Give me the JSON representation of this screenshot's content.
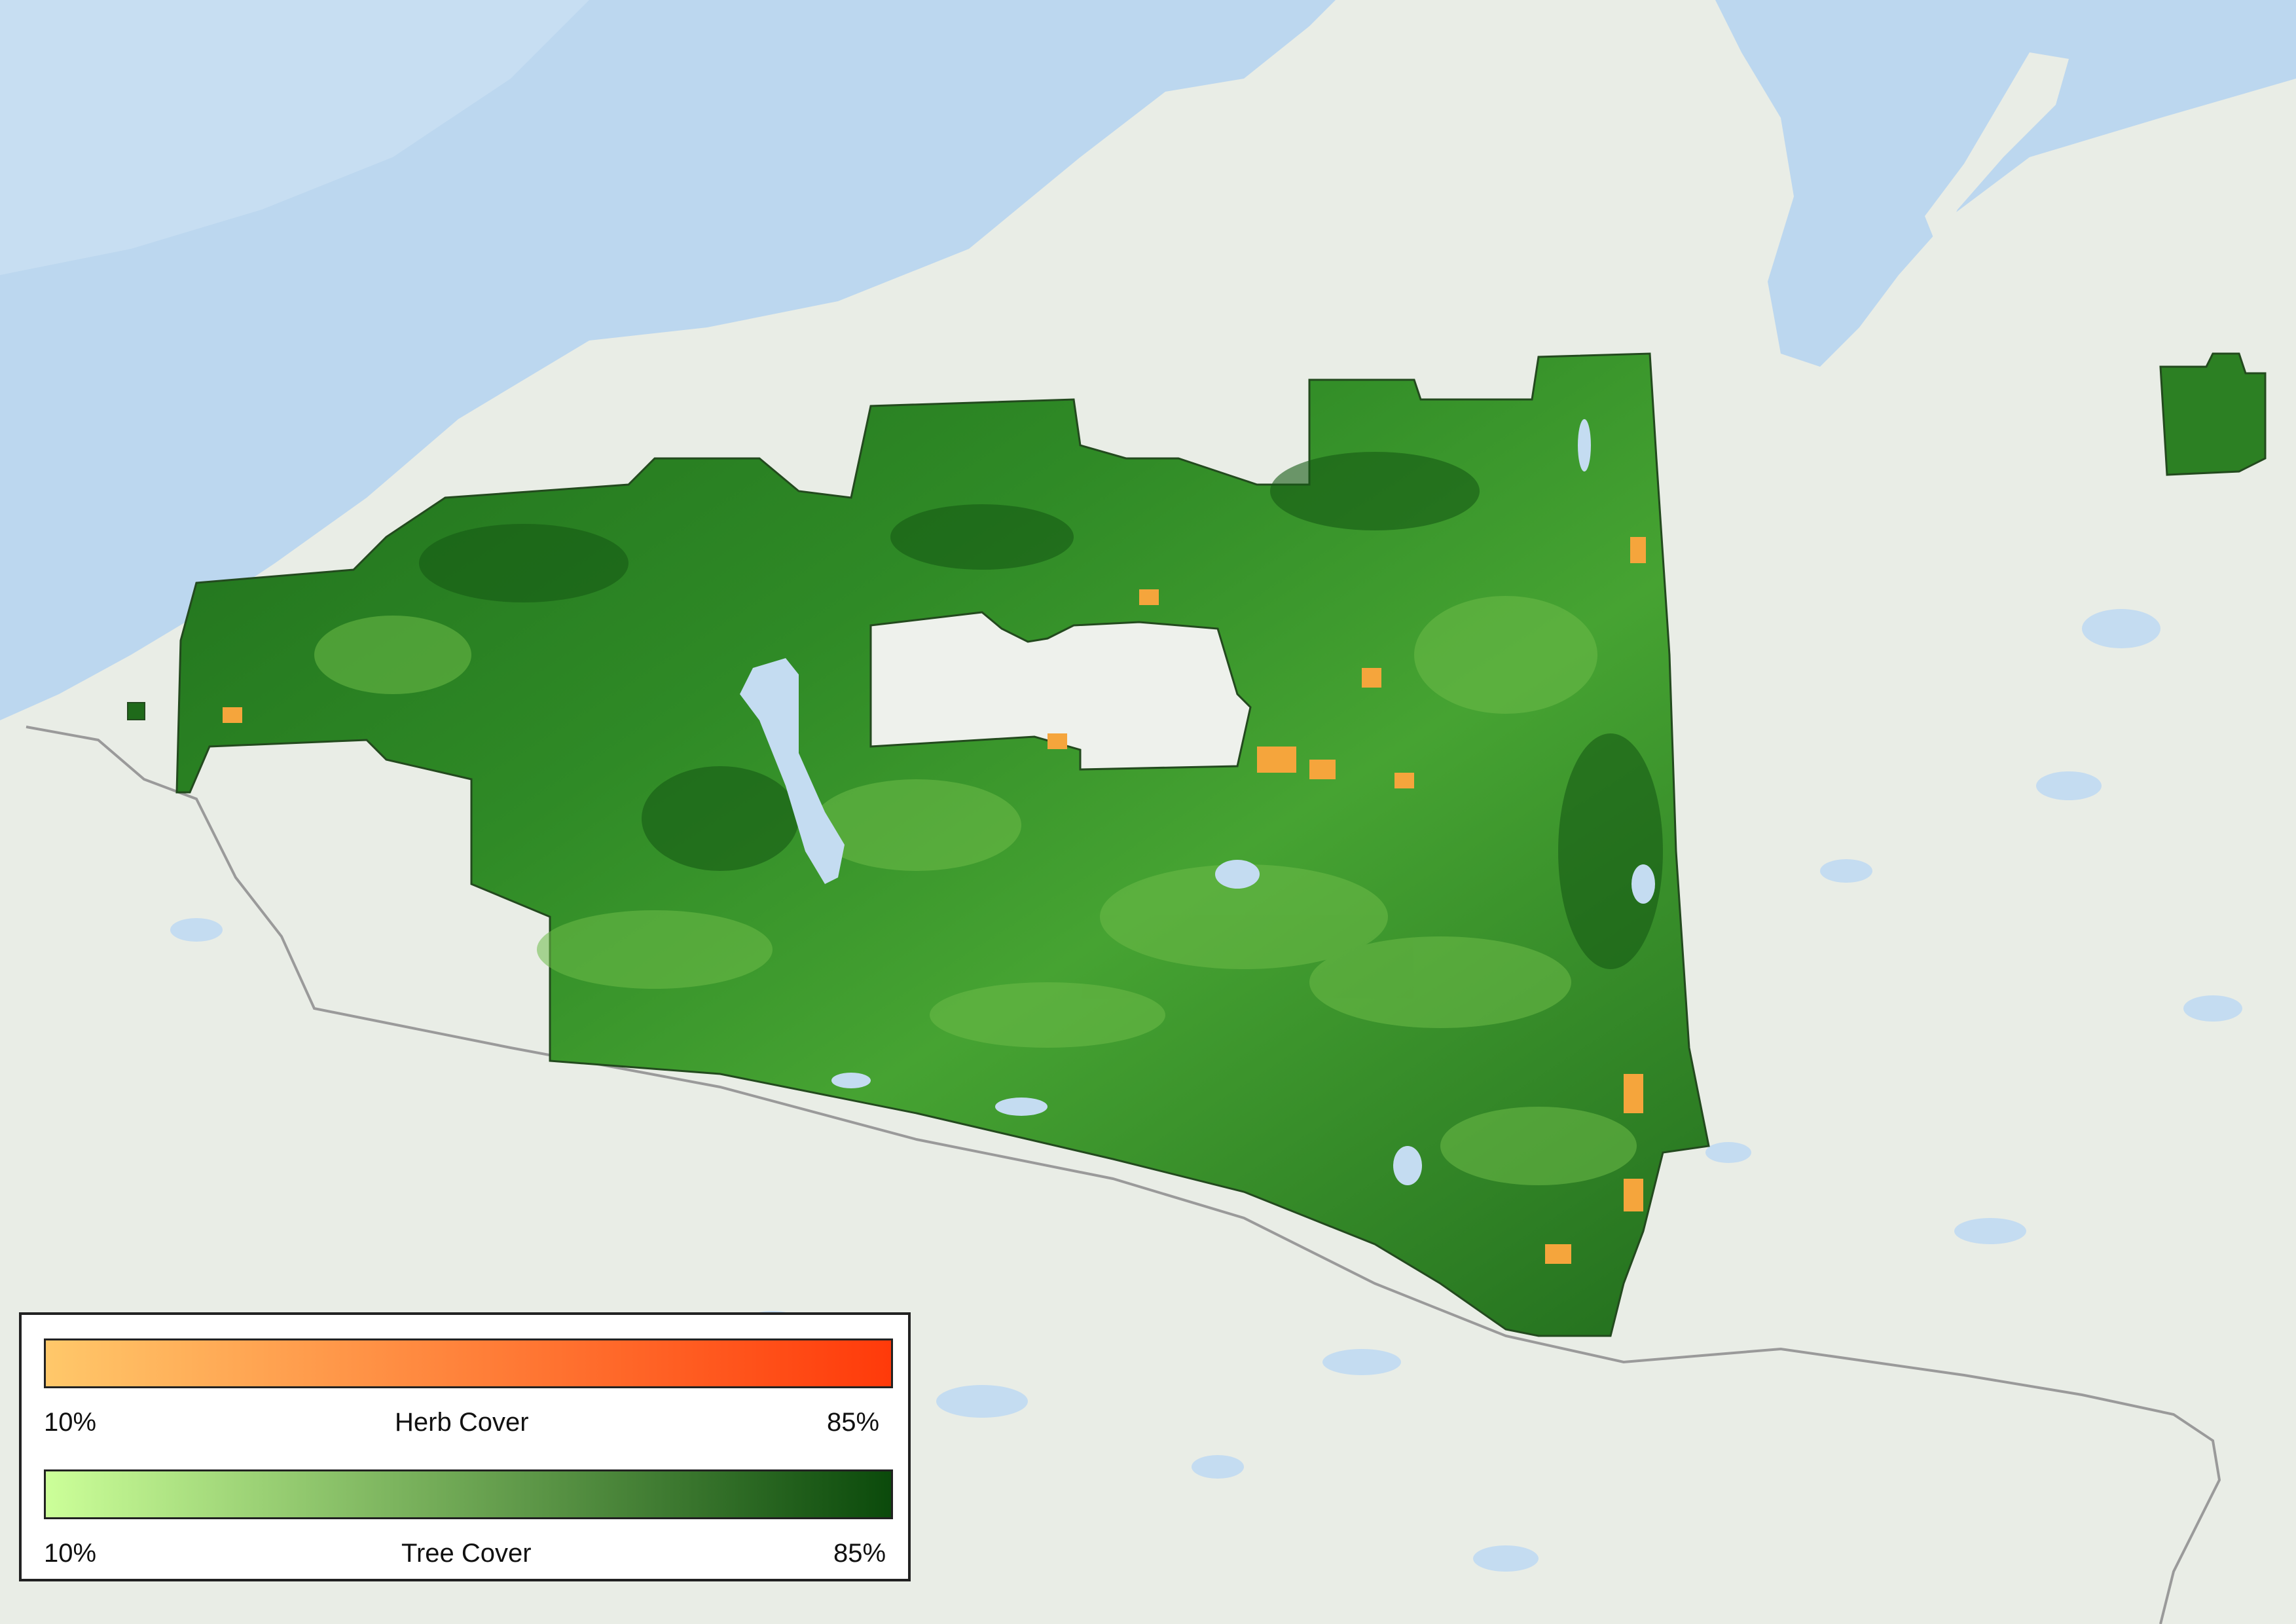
{
  "colors": {
    "water": "#bcd7ef",
    "land": "#e9ede6",
    "forest_dark": "#1f6a1a",
    "forest_mid": "#3d9a2d",
    "forest_light": "#7cc34e",
    "herb": "#f5a53c",
    "border_line": "#9a9a9a",
    "study_outline": "#234a1e"
  },
  "legend": {
    "herb": {
      "title": "Herb Cover",
      "min_label": "10%",
      "max_label": "85%",
      "ramp_colors": [
        "#ffc86a",
        "#ff3a0a"
      ]
    },
    "tree": {
      "title": "Tree Cover",
      "min_label": "10%",
      "max_label": "85%",
      "ramp_colors": [
        "#ccff99",
        "#0b4a0b"
      ]
    }
  }
}
